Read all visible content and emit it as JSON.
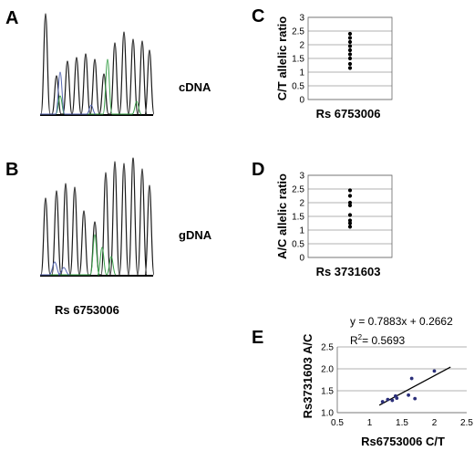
{
  "panels": {
    "A": {
      "letter": "A",
      "label": "cDNA"
    },
    "B": {
      "letter": "B",
      "label": "gDNA"
    },
    "AB_caption": "Rs 6753006",
    "C": {
      "letter": "C"
    },
    "D": {
      "letter": "D"
    },
    "E": {
      "letter": "E"
    }
  },
  "colors": {
    "trace_black": "#1a1a1a",
    "trace_green": "#3aa04a",
    "trace_blue": "#5566b0",
    "point_navy": "#2b2f7a",
    "grid": "#999999"
  },
  "chart_data": [
    {
      "id": "C",
      "type": "scatter",
      "ylabel": "C/T allelic ratio",
      "xlabel": "Rs 6753006",
      "ylim": [
        0,
        3
      ],
      "yticks": [
        "0",
        "0.5",
        "1",
        "1.5",
        "2",
        "2.5",
        "3"
      ],
      "grid": true,
      "values": [
        1.15,
        1.3,
        1.5,
        1.65,
        1.8,
        1.95,
        2.1,
        2.25,
        2.4
      ]
    },
    {
      "id": "D",
      "type": "scatter",
      "ylabel": "A/C allelic ratio",
      "xlabel": "Rs 3731603",
      "ylim": [
        0,
        3
      ],
      "yticks": [
        "0",
        "0.5",
        "1",
        "1.5",
        "2",
        "2.5",
        "3"
      ],
      "grid": true,
      "values": [
        1.12,
        1.25,
        1.35,
        1.55,
        1.9,
        2.0,
        2.25,
        2.45
      ]
    },
    {
      "id": "E",
      "type": "scatter",
      "ylabel": "Rs3731603  A/C",
      "xlabel": "Rs6753006 C/T",
      "xlim": [
        0.5,
        2.5
      ],
      "ylim": [
        1.0,
        2.5
      ],
      "xticks": [
        "0.5",
        "1",
        "1.5",
        "2",
        "2.5"
      ],
      "yticks": [
        "1.0",
        "1.5",
        "2.0",
        "2.5"
      ],
      "grid": true,
      "points": [
        [
          1.2,
          1.25
        ],
        [
          1.28,
          1.3
        ],
        [
          1.35,
          1.28
        ],
        [
          1.4,
          1.38
        ],
        [
          1.42,
          1.33
        ],
        [
          1.6,
          1.4
        ],
        [
          1.65,
          1.78
        ],
        [
          1.7,
          1.32
        ],
        [
          2.0,
          1.95
        ]
      ],
      "trendline": {
        "x": [
          1.15,
          2.25
        ],
        "y": [
          1.17,
          2.04
        ]
      },
      "equation": "y = 0.7883x + 0.2662",
      "r2_prefix": "R",
      "r2_sup": "2",
      "r2_value": "= 0.5693"
    }
  ]
}
